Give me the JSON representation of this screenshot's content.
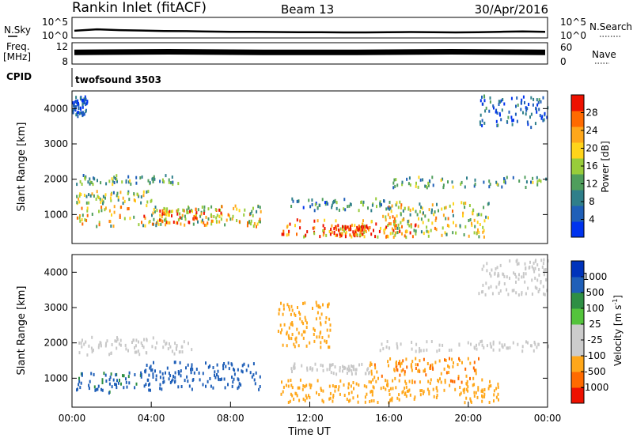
{
  "header": {
    "title": "Rankin Inlet (fitACF)",
    "beam": "Beam 13",
    "date": "30/Apr/2016"
  },
  "colors": {
    "power_scale": [
      "#0033ee",
      "#1f5fb8",
      "#2f7f8a",
      "#4f9e5c",
      "#98cc3a",
      "#ffd41a",
      "#ffa71a",
      "#ff6a00",
      "#ee1100"
    ],
    "velocity_scale": [
      "#ee1100",
      "#ff6a00",
      "#ffa71a",
      "#cccccc",
      "#cccccc",
      "#54c43c",
      "#2e8f44",
      "#1f5fb8",
      "#0033bb"
    ],
    "scatter_grey": "#c8c8c8"
  },
  "chart_data": [
    {
      "panel": "noise",
      "type": "line",
      "left_label": "N.Sky",
      "left_ticks": [
        "10^5",
        "10^0"
      ],
      "right_label": "N.Search",
      "right_ticks": [
        "10^5",
        "10^0"
      ],
      "series": [
        {
          "values": [
            0.35,
            0.42,
            0.38,
            0.36,
            0.34,
            0.33,
            0.31,
            0.3,
            0.3,
            0.29,
            0.28,
            0.28,
            0.27,
            0.27,
            0.28,
            0.29,
            0.28,
            0.27,
            0.28,
            0.3,
            0.32,
            0.3
          ]
        }
      ]
    },
    {
      "panel": "freq",
      "type": "line",
      "left_label_1": "Freq.",
      "left_label_2": "[MHz]",
      "left_ticks": [
        "12",
        "8"
      ],
      "right_label": "Nave",
      "right_ticks": [
        "60",
        "0"
      ],
      "series": [
        {
          "values": [
            10.2,
            10.3,
            10.2,
            10.2,
            10.3,
            10.2
          ]
        }
      ]
    },
    {
      "panel": "cpid",
      "type": "table",
      "label": "CPID",
      "program": "twofsound 3503"
    },
    {
      "panel": "power",
      "type": "heatmap",
      "ylabel": "Slant Range [km]",
      "y_ticks": [
        "1000",
        "2000",
        "3000",
        "4000"
      ],
      "ylim": [
        180,
        4500
      ],
      "colorbar_label": "Power [dB]",
      "colorbar_ticks": [
        "4",
        "8",
        "12",
        "16",
        "20",
        "24",
        "28"
      ],
      "clim": [
        0,
        32
      ],
      "regions": [
        {
          "t": [
            0.2,
            9.5
          ],
          "r": [
            700,
            1300
          ],
          "value": 19
        },
        {
          "t": [
            4.0,
            7.5
          ],
          "r": [
            800,
            1200
          ],
          "value": 27
        },
        {
          "t": [
            0.2,
            4.0
          ],
          "r": [
            1350,
            1700
          ],
          "value": 15
        },
        {
          "t": [
            0.2,
            5.5
          ],
          "r": [
            1900,
            2150
          ],
          "value": 11
        },
        {
          "t": [
            10.5,
            17.5
          ],
          "r": [
            400,
            900
          ],
          "value": 26
        },
        {
          "t": [
            13.0,
            15.0
          ],
          "r": [
            420,
            750
          ],
          "value": 29
        },
        {
          "t": [
            15.5,
            21.0
          ],
          "r": [
            400,
            1400
          ],
          "value": 18
        },
        {
          "t": [
            11.0,
            16.0
          ],
          "r": [
            1150,
            1500
          ],
          "value": 10
        },
        {
          "t": [
            16.0,
            24.0
          ],
          "r": [
            1800,
            2100
          ],
          "value": 12
        },
        {
          "t": [
            20.5,
            24.0
          ],
          "r": [
            3500,
            4400
          ],
          "value": 6
        },
        {
          "t": [
            0.0,
            0.8
          ],
          "r": [
            3800,
            4400
          ],
          "value": 5
        }
      ]
    },
    {
      "panel": "velocity",
      "type": "heatmap",
      "ylabel": "Slant Range [km]",
      "y_ticks": [
        "1000",
        "2000",
        "3000",
        "4000"
      ],
      "ylim": [
        180,
        4500
      ],
      "xlabel": "Time UT",
      "x_ticks": [
        "00:00",
        "04:00",
        "08:00",
        "12:00",
        "16:00",
        "20:00",
        "00:00"
      ],
      "xlim": [
        0,
        24
      ],
      "colorbar_label": "Velocity [m s",
      "colorbar_label_sup": "-1",
      "colorbar_label_end": "]",
      "colorbar_ticks": [
        "-1000",
        "-500",
        "-100",
        "-25",
        "25",
        "100",
        "500",
        "1000"
      ],
      "regions": [
        {
          "t": [
            3.5,
            9.5
          ],
          "r": [
            700,
            1500
          ],
          "value": 350
        },
        {
          "t": [
            0.2,
            3.5
          ],
          "r": [
            600,
            1200
          ],
          "value": 120
        },
        {
          "t": [
            0.2,
            6.0
          ],
          "r": [
            1700,
            2200
          ],
          "value": 0
        },
        {
          "t": [
            10.5,
            21.5
          ],
          "r": [
            350,
            1000
          ],
          "value": -200
        },
        {
          "t": [
            15.0,
            20.5
          ],
          "r": [
            900,
            1600
          ],
          "value": -450
        },
        {
          "t": [
            11.0,
            15.0
          ],
          "r": [
            1150,
            1450
          ],
          "value": 0
        },
        {
          "t": [
            15.5,
            24.0
          ],
          "r": [
            1800,
            2100
          ],
          "value": 0
        },
        {
          "t": [
            10.3,
            13.0
          ],
          "r": [
            1900,
            3200
          ],
          "value": -150
        },
        {
          "t": [
            20.5,
            24.0
          ],
          "r": [
            3400,
            4400
          ],
          "value": 0
        }
      ]
    }
  ]
}
